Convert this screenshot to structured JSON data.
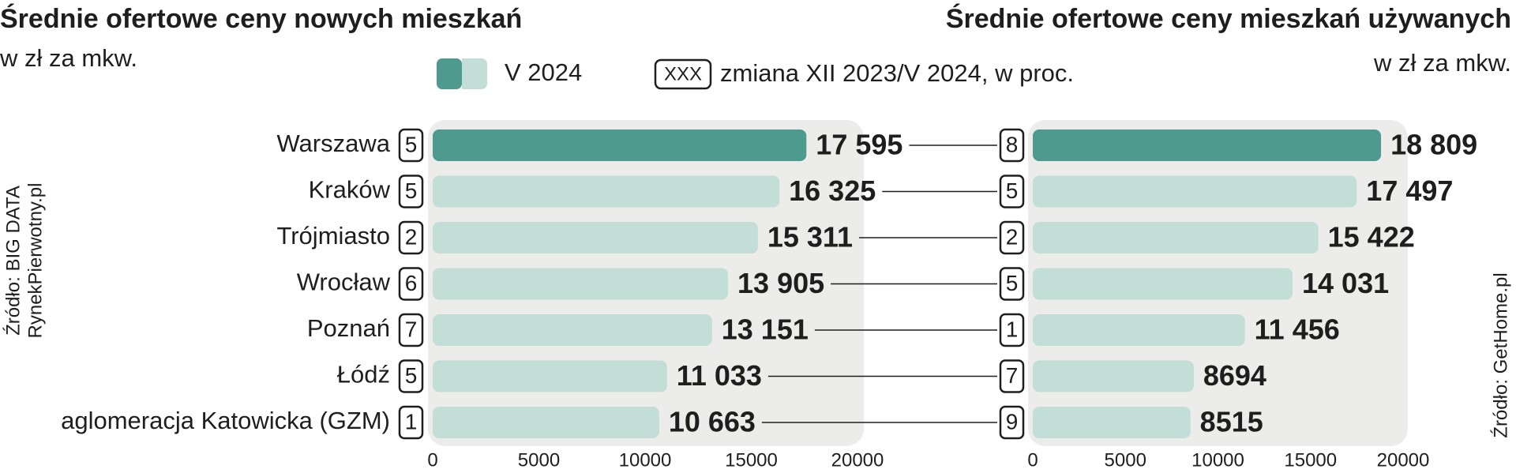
{
  "legend": {
    "label": "V 2024",
    "badge": "XXX",
    "badge_label": "zmiana XII 2023/V 2024, w proc."
  },
  "chart_data": [
    {
      "type": "bar",
      "orientation": "horizontal",
      "title": "Średnie ofertowe ceny nowych mieszkań",
      "subtitle": "w zł za mkw.",
      "categories": [
        "Warszawa",
        "Kraków",
        "Trójmiasto",
        "Wrocław",
        "Poznań",
        "Łódź",
        "aglomeracja Katowicka (GZM)"
      ],
      "values": [
        17595,
        16325,
        15311,
        13905,
        13151,
        11033,
        10663
      ],
      "value_labels": [
        "17 595",
        "16 325",
        "15 311",
        "13 905",
        "13 151",
        "11 033",
        "10 663"
      ],
      "changes": [
        5,
        5,
        2,
        6,
        7,
        5,
        1
      ],
      "colors": [
        "#4f9a8f",
        "#c3ddd7",
        "#c3ddd7",
        "#c3ddd7",
        "#c3ddd7",
        "#c3ddd7",
        "#c3ddd7"
      ],
      "xlim": [
        0,
        20000
      ],
      "xticks": [
        0,
        5000,
        10000,
        15000,
        20000
      ],
      "source": [
        "Źródło: BIG DATA",
        "RynekPierwotny.pl"
      ]
    },
    {
      "type": "bar",
      "orientation": "horizontal",
      "title": "Średnie ofertowe ceny mieszkań używanych",
      "subtitle": "w zł za mkw.",
      "values": [
        18809,
        17497,
        15422,
        14031,
        11456,
        8694,
        8515
      ],
      "value_labels": [
        "18 809",
        "17 497",
        "15 422",
        "14 031",
        "11 456",
        "8694",
        "8515"
      ],
      "changes": [
        8,
        5,
        2,
        5,
        1,
        7,
        9
      ],
      "colors": [
        "#4f9a8f",
        "#c3ddd7",
        "#c3ddd7",
        "#c3ddd7",
        "#c3ddd7",
        "#c3ddd7",
        "#c3ddd7"
      ],
      "xlim": [
        0,
        20000
      ],
      "xticks": [
        0,
        5000,
        10000,
        15000,
        20000
      ],
      "source": [
        "Źródło: GetHome.pl"
      ]
    }
  ]
}
